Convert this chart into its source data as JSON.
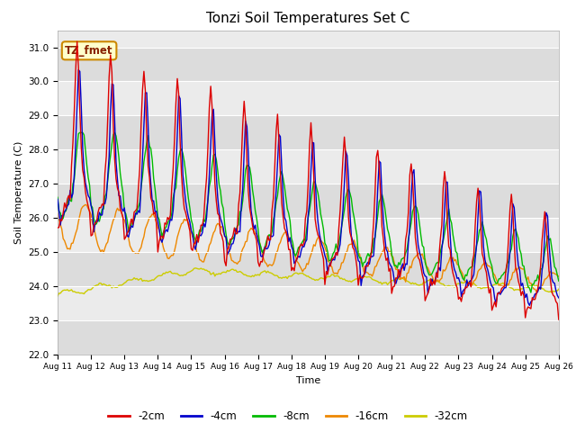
{
  "title": "Tonzi Soil Temperatures Set C",
  "xlabel": "Time",
  "ylabel": "Soil Temperature (C)",
  "ylim": [
    22.0,
    31.5
  ],
  "xlim": [
    0,
    360
  ],
  "fig_bg": "#ffffff",
  "plot_bg": "#f0f0f0",
  "band_color_light": "#e8e8e8",
  "band_color_dark": "#d0d0d0",
  "colors": {
    "-2cm": "#dd0000",
    "-4cm": "#0000cc",
    "-8cm": "#00bb00",
    "-16cm": "#ee8800",
    "-32cm": "#cccc00"
  },
  "legend_labels": [
    "-2cm",
    "-4cm",
    "-8cm",
    "-16cm",
    "-32cm"
  ],
  "x_tick_labels": [
    "Aug 11",
    "Aug 12",
    "Aug 13",
    "Aug 14",
    "Aug 15",
    "Aug 16",
    "Aug 17",
    "Aug 18",
    "Aug 19",
    "Aug 20",
    "Aug 21",
    "Aug 22",
    "Aug 23",
    "Aug 24",
    "Aug 25",
    "Aug 26"
  ],
  "x_tick_positions": [
    0,
    24,
    48,
    72,
    96,
    120,
    144,
    168,
    192,
    216,
    240,
    264,
    288,
    312,
    336,
    360
  ],
  "yticks": [
    22.0,
    23.0,
    24.0,
    25.0,
    26.0,
    27.0,
    28.0,
    29.0,
    30.0,
    31.0
  ],
  "annotation_text": "TZ_fmet",
  "linewidth": 1.0
}
